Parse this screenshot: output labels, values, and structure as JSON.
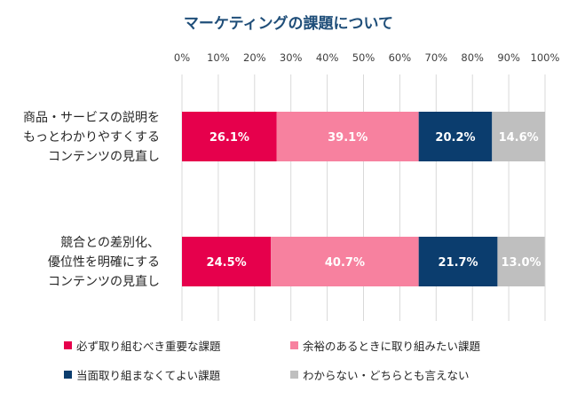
{
  "chart_data": {
    "type": "bar",
    "orientation": "horizontal",
    "stacked": true,
    "title": "マーケティングの課題について",
    "x_ticks": [
      "0%",
      "10%",
      "20%",
      "30%",
      "40%",
      "50%",
      "60%",
      "70%",
      "80%",
      "90%",
      "100%"
    ],
    "xlim": [
      0,
      100
    ],
    "categories": [
      [
        "商品・サービスの説明を",
        "もっとわかりやすくする",
        "コンテンツの見直し"
      ],
      [
        "競合との差別化、",
        "優位性を明確にする",
        "コンテンツの見直し"
      ]
    ],
    "series": [
      {
        "name": "必ず取り組むべき重要な課題",
        "color": "#e6004c",
        "values": [
          26.1,
          24.5
        ],
        "labels": [
          "26.1%",
          "24.5%"
        ]
      },
      {
        "name": "余裕のあるときに取り組みたい課題",
        "color": "#f7819f",
        "values": [
          39.1,
          40.7
        ],
        "labels": [
          "39.1%",
          "40.7%"
        ]
      },
      {
        "name": "当面取り組まなくてよい課題",
        "color": "#0b3d6e",
        "values": [
          20.2,
          21.7
        ],
        "labels": [
          "20.2%",
          "21.7%"
        ]
      },
      {
        "name": "わからない・どちらとも言えない",
        "color": "#bfbfbf",
        "values": [
          14.6,
          13.0
        ],
        "labels": [
          "14.6%",
          "13.0%"
        ]
      }
    ],
    "grid": true,
    "legend_position": "bottom"
  }
}
